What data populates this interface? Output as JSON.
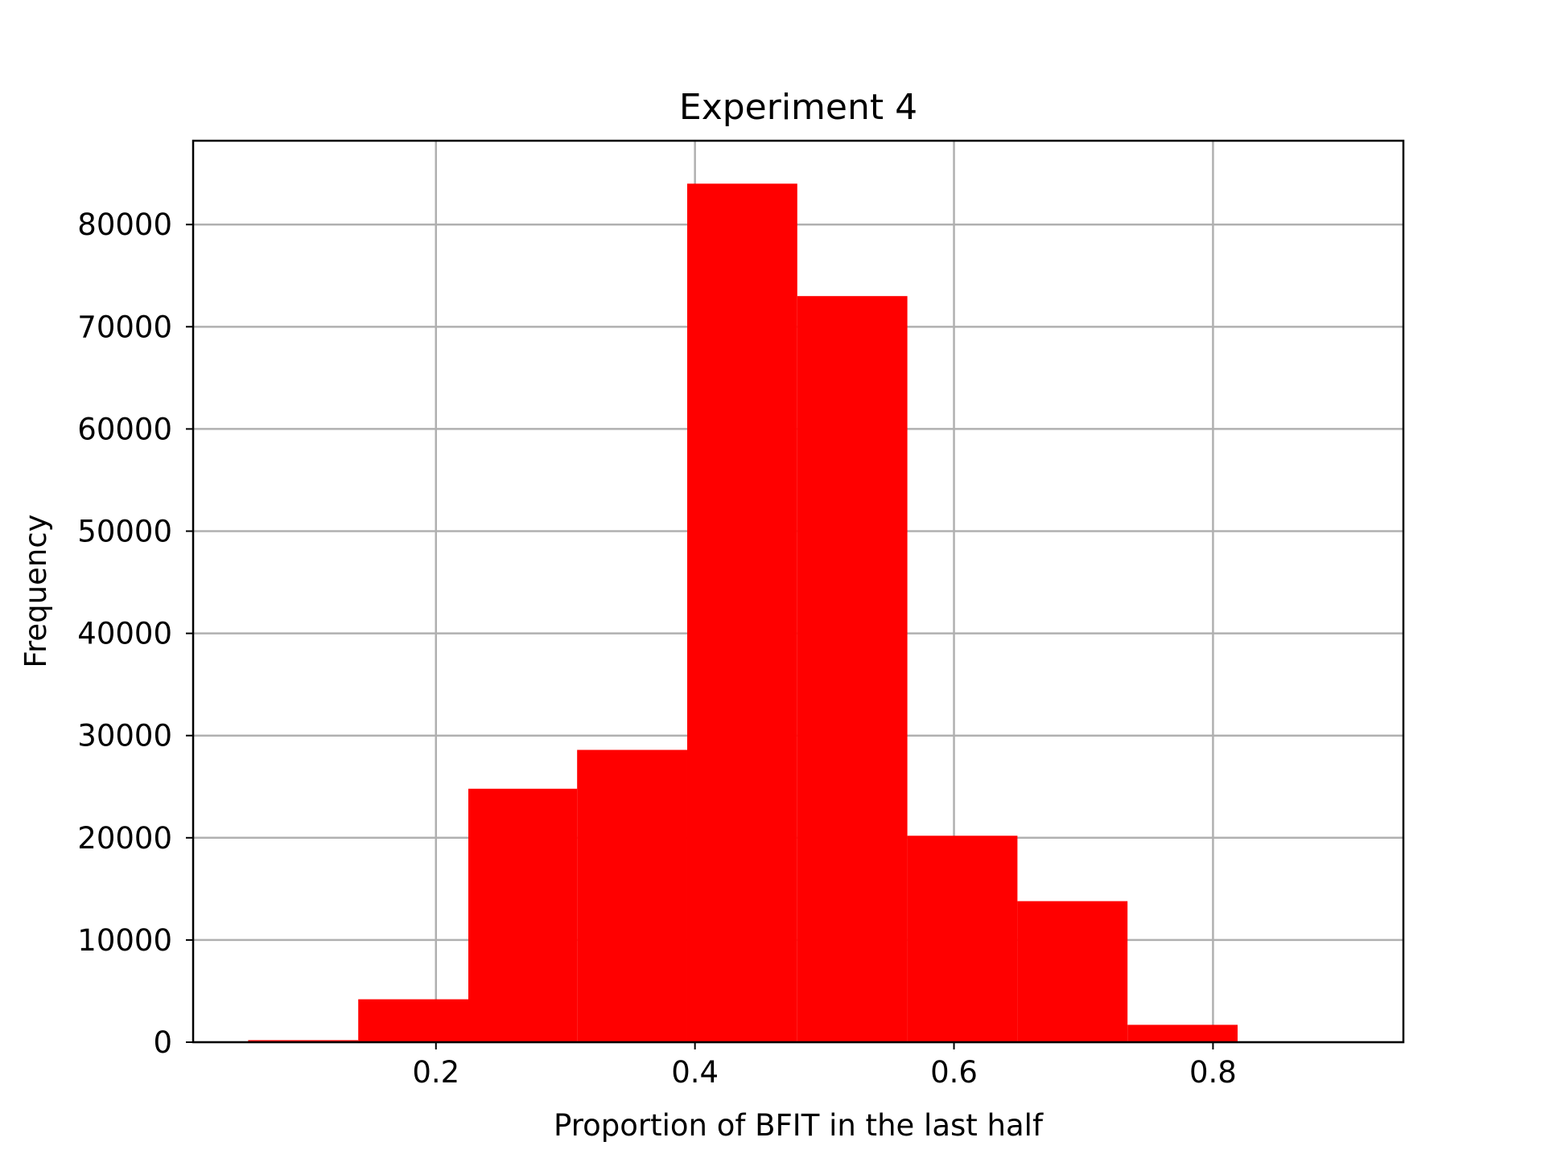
{
  "chart_data": {
    "type": "bar",
    "title": "Experiment 4",
    "xlabel": "Proportion of BFIT in the last half",
    "ylabel": "Frequency",
    "bar_color": "#ff0000",
    "xlim": [
      0.0125,
      0.947
    ],
    "ylim": [
      0,
      88200
    ],
    "grid": true,
    "xticks": [
      0.2,
      0.4,
      0.6,
      0.8
    ],
    "xtick_labels": [
      "0.2",
      "0.4",
      "0.6",
      "0.8"
    ],
    "yticks": [
      0,
      10000,
      20000,
      30000,
      40000,
      50000,
      60000,
      70000,
      80000
    ],
    "ytick_labels": [
      "0",
      "10000",
      "20000",
      "30000",
      "40000",
      "50000",
      "60000",
      "70000",
      "80000"
    ],
    "bins": [
      {
        "start": 0.055,
        "end": 0.14,
        "value": 200
      },
      {
        "start": 0.14,
        "end": 0.225,
        "value": 4200
      },
      {
        "start": 0.225,
        "end": 0.309,
        "value": 24800
      },
      {
        "start": 0.309,
        "end": 0.394,
        "value": 28600
      },
      {
        "start": 0.394,
        "end": 0.479,
        "value": 84000
      },
      {
        "start": 0.479,
        "end": 0.564,
        "value": 73000
      },
      {
        "start": 0.564,
        "end": 0.649,
        "value": 20200
      },
      {
        "start": 0.649,
        "end": 0.734,
        "value": 13800
      },
      {
        "start": 0.734,
        "end": 0.819,
        "value": 1700
      }
    ]
  }
}
